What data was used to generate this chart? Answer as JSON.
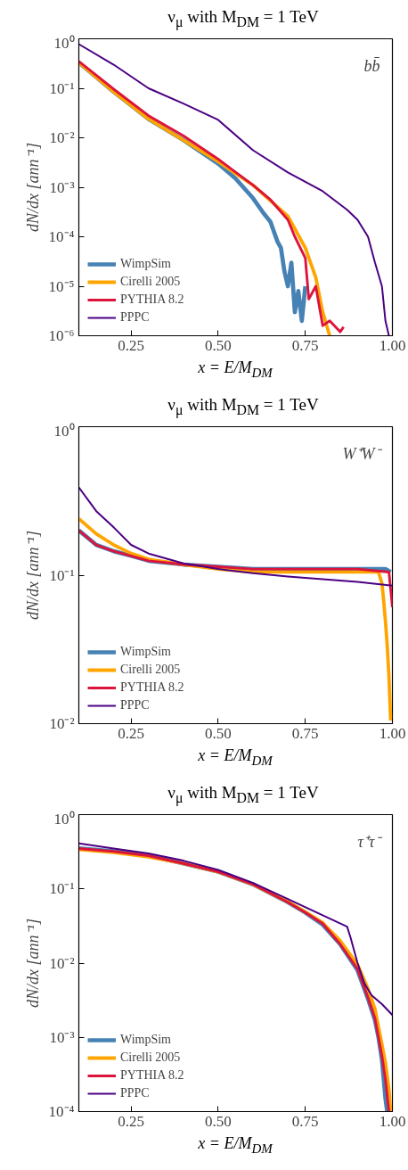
{
  "chart_data": [
    {
      "type": "line",
      "title": "ν$_{μ}$ with M$_{DM}$ = 1 TeV",
      "xlabel": "x = E/M$_{DM}$",
      "ylabel": "dN/dx [ann⁻¹]",
      "annotations": [
        "bb̄"
      ],
      "log": "y",
      "grid": false,
      "legend": "bottom left",
      "xlim": [
        0.1,
        1.0
      ],
      "xticks": [
        {
          "value": 0.25,
          "label": "0.25"
        },
        {
          "value": 0.5,
          "label": "0.50"
        },
        {
          "value": 0.75,
          "label": "0.75"
        },
        {
          "value": 1.0,
          "label": "1.00"
        }
      ],
      "ylim": [
        1e-06,
        1
      ],
      "yticks": [
        {
          "value": 1,
          "label": "10⁰"
        },
        {
          "value": 0.1,
          "label": "10⁻¹"
        },
        {
          "value": 0.01,
          "label": "10⁻²"
        },
        {
          "value": 0.001,
          "label": "10⁻³"
        },
        {
          "value": 0.0001,
          "label": "10⁻⁴"
        },
        {
          "value": 1e-05,
          "label": "10⁻⁵"
        },
        {
          "value": 1e-06,
          "label": "10⁻⁶"
        }
      ],
      "series": [
        {
          "name": "WimpSim",
          "color": "#4682b4",
          "x": [
            0.1,
            0.2,
            0.3,
            0.4,
            0.5,
            0.55,
            0.6,
            0.63,
            0.65,
            0.67,
            0.68,
            0.69,
            0.7,
            0.71,
            0.72,
            0.73,
            0.74,
            0.75
          ],
          "values": [
            0.33,
            0.085,
            0.024,
            0.009,
            0.003,
            0.0015,
            0.0006,
            0.0003,
            0.0002,
            8e-05,
            6e-05,
            2e-05,
            1e-05,
            3e-05,
            3e-06,
            8e-06,
            2e-06,
            1e-05
          ]
        },
        {
          "name": "Cirelli 2005",
          "color": "#ffa500",
          "x": [
            0.1,
            0.2,
            0.3,
            0.4,
            0.5,
            0.6,
            0.7,
            0.75,
            0.78,
            0.8,
            0.82
          ],
          "values": [
            0.33,
            0.085,
            0.024,
            0.009,
            0.0033,
            0.0011,
            0.00026,
            6e-05,
            1.5e-05,
            3e-06,
            1e-06
          ]
        },
        {
          "name": "PYTHIA 8.2",
          "color": "#dc143c",
          "x": [
            0.1,
            0.2,
            0.3,
            0.4,
            0.5,
            0.6,
            0.65,
            0.7,
            0.72,
            0.75,
            0.76,
            0.78,
            0.8,
            0.82,
            0.85,
            0.86
          ],
          "values": [
            0.35,
            0.096,
            0.028,
            0.011,
            0.0037,
            0.0011,
            0.00056,
            0.00022,
            0.0001,
            3.7e-05,
            5.5e-06,
            1e-05,
            1.6e-06,
            2e-06,
            1.2e-06,
            1.5e-06
          ]
        },
        {
          "name": "PPPC",
          "color": "#4b0082",
          "x": [
            0.1,
            0.2,
            0.3,
            0.4,
            0.5,
            0.6,
            0.7,
            0.8,
            0.87,
            0.9,
            0.93,
            0.95,
            0.97,
            0.98,
            0.99
          ],
          "values": [
            0.78,
            0.3,
            0.1,
            0.049,
            0.023,
            0.0056,
            0.002,
            0.00083,
            0.00035,
            0.00022,
            0.0001,
            3e-05,
            1e-05,
            2e-06,
            1e-06
          ]
        }
      ]
    },
    {
      "type": "line",
      "title": "ν$_{μ}$ with M$_{DM}$ = 1 TeV",
      "xlabel": "x = E/M$_{DM}$",
      "ylabel": "dN/dx [ann⁻¹]",
      "annotations": [
        "W⁺W⁻"
      ],
      "log": "y",
      "grid": false,
      "legend": "bottom left",
      "xlim": [
        0.1,
        1.0
      ],
      "xticks": [
        {
          "value": 0.25,
          "label": "0.25"
        },
        {
          "value": 0.5,
          "label": "0.50"
        },
        {
          "value": 0.75,
          "label": "0.75"
        },
        {
          "value": 1.0,
          "label": "1.00"
        }
      ],
      "ylim": [
        0.01,
        1
      ],
      "yticks": [
        {
          "value": 1,
          "label": "10⁰"
        },
        {
          "value": 0.1,
          "label": "10⁻¹"
        },
        {
          "value": 0.01,
          "label": "10⁻²"
        }
      ],
      "series": [
        {
          "name": "WimpSim",
          "color": "#4682b4",
          "x": [
            0.1,
            0.15,
            0.2,
            0.25,
            0.3,
            0.4,
            0.5,
            0.6,
            0.7,
            0.8,
            0.9,
            0.98,
            0.995
          ],
          "values": [
            0.2,
            0.16,
            0.145,
            0.135,
            0.125,
            0.118,
            0.114,
            0.11,
            0.11,
            0.11,
            0.11,
            0.11,
            0.105
          ]
        },
        {
          "name": "Cirelli 2005",
          "color": "#ffa500",
          "x": [
            0.1,
            0.15,
            0.2,
            0.25,
            0.3,
            0.4,
            0.5,
            0.6,
            0.7,
            0.8,
            0.9,
            0.96,
            0.97,
            0.975,
            0.98,
            0.985,
            0.99,
            0.995
          ],
          "values": [
            0.24,
            0.19,
            0.16,
            0.14,
            0.128,
            0.118,
            0.11,
            0.105,
            0.105,
            0.105,
            0.105,
            0.105,
            0.088,
            0.067,
            0.049,
            0.034,
            0.021,
            0.0105
          ]
        },
        {
          "name": "PYTHIA 8.2",
          "color": "#dc143c",
          "x": [
            0.1,
            0.15,
            0.2,
            0.25,
            0.3,
            0.4,
            0.5,
            0.6,
            0.7,
            0.8,
            0.9,
            0.99,
            1.0
          ],
          "values": [
            0.2,
            0.16,
            0.145,
            0.135,
            0.125,
            0.118,
            0.114,
            0.11,
            0.11,
            0.11,
            0.11,
            0.105,
            0.061
          ]
        },
        {
          "name": "PPPC",
          "color": "#4b0082",
          "x": [
            0.1,
            0.15,
            0.2,
            0.25,
            0.3,
            0.4,
            0.5,
            0.6,
            0.7,
            0.8,
            0.9,
            1.0
          ],
          "values": [
            0.39,
            0.27,
            0.21,
            0.16,
            0.14,
            0.12,
            0.11,
            0.103,
            0.098,
            0.094,
            0.09,
            0.085
          ]
        }
      ]
    },
    {
      "type": "line",
      "title": "ν$_{μ}$ with M$_{DM}$ = 1 TeV",
      "xlabel": "x = E/M$_{DM}$",
      "ylabel": "dN/dx [ann⁻¹]",
      "annotations": [
        "τ⁺τ⁻"
      ],
      "log": "y",
      "grid": false,
      "legend": "bottom left",
      "xlim": [
        0.1,
        1.0
      ],
      "xticks": [
        {
          "value": 0.25,
          "label": "0.25"
        },
        {
          "value": 0.5,
          "label": "0.50"
        },
        {
          "value": 0.75,
          "label": "0.75"
        },
        {
          "value": 1.0,
          "label": "1.00"
        }
      ],
      "ylim": [
        0.0001,
        1
      ],
      "yticks": [
        {
          "value": 1,
          "label": "10⁰"
        },
        {
          "value": 0.1,
          "label": "10⁻¹"
        },
        {
          "value": 0.01,
          "label": "10⁻²"
        },
        {
          "value": 0.001,
          "label": "10⁻³"
        },
        {
          "value": 0.0001,
          "label": "10⁻⁴"
        }
      ],
      "series": [
        {
          "name": "WimpSim",
          "color": "#4682b4",
          "x": [
            0.1,
            0.2,
            0.3,
            0.4,
            0.5,
            0.6,
            0.7,
            0.75,
            0.8,
            0.85,
            0.9,
            0.93,
            0.95,
            0.96,
            0.97,
            0.98,
            0.985
          ],
          "values": [
            0.35,
            0.32,
            0.28,
            0.22,
            0.17,
            0.115,
            0.066,
            0.048,
            0.033,
            0.018,
            0.008,
            0.0033,
            0.0017,
            0.001,
            0.0005,
            0.00015,
            0.0001
          ]
        },
        {
          "name": "Cirelli 2005",
          "color": "#ffa500",
          "x": [
            0.1,
            0.2,
            0.3,
            0.4,
            0.5,
            0.6,
            0.7,
            0.75,
            0.8,
            0.85,
            0.9,
            0.93,
            0.95,
            0.97,
            0.98,
            0.99,
            0.995
          ],
          "values": [
            0.34,
            0.31,
            0.27,
            0.22,
            0.17,
            0.115,
            0.067,
            0.049,
            0.035,
            0.02,
            0.0095,
            0.0045,
            0.0024,
            0.0008,
            0.00045,
            0.0002,
            0.0001
          ]
        },
        {
          "name": "PYTHIA 8.2",
          "color": "#dc143c",
          "x": [
            0.1,
            0.2,
            0.3,
            0.4,
            0.5,
            0.6,
            0.7,
            0.75,
            0.8,
            0.85,
            0.9,
            0.93,
            0.95,
            0.97,
            0.98,
            0.99
          ],
          "values": [
            0.35,
            0.32,
            0.28,
            0.22,
            0.17,
            0.115,
            0.066,
            0.048,
            0.034,
            0.018,
            0.0083,
            0.0034,
            0.0018,
            0.00056,
            0.00027,
            0.0001
          ]
        },
        {
          "name": "PPPC",
          "color": "#4b0082",
          "x": [
            0.1,
            0.2,
            0.3,
            0.4,
            0.5,
            0.6,
            0.7,
            0.8,
            0.87,
            0.88,
            0.9,
            0.92,
            0.94,
            0.97,
            1.0
          ],
          "values": [
            0.41,
            0.35,
            0.3,
            0.24,
            0.18,
            0.12,
            0.073,
            0.044,
            0.031,
            0.022,
            0.01,
            0.0053,
            0.0037,
            0.0028,
            0.002
          ]
        }
      ]
    }
  ]
}
